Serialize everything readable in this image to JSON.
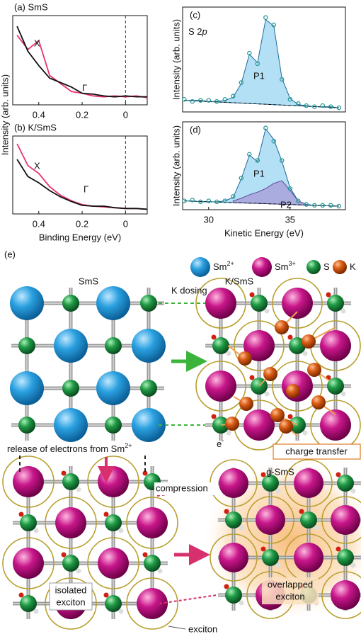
{
  "chart_data": [
    {
      "type": "line",
      "title": "(a) SmS",
      "ylabel": "Intensity (arb. units)",
      "x": [
        0.5,
        0.45,
        0.4,
        0.35,
        0.3,
        0.25,
        0.2,
        0.15,
        0.1,
        0.05,
        0,
        -0.05,
        -0.1
      ],
      "xlim": [
        0.52,
        -0.1
      ],
      "xticks": [
        0.4,
        0.2,
        0
      ],
      "ylim": [
        0,
        1
      ],
      "vline": 0,
      "annotations": [
        "X",
        "Γ"
      ],
      "series": [
        {
          "color": "#e8326e",
          "values": [
            0.78,
            0.62,
            0.72,
            0.33,
            0.24,
            0.15,
            0.13,
            0.1,
            0.09,
            0.1,
            0.09,
            0.1,
            0.08
          ]
        },
        {
          "color": "#111111",
          "values": [
            0.88,
            0.6,
            0.44,
            0.3,
            0.25,
            0.2,
            0.13,
            0.12,
            0.1,
            0.09,
            0.1,
            0.09,
            0.09
          ]
        }
      ]
    },
    {
      "type": "line",
      "title": "(b) K/SmS",
      "xlabel": "Binding Energy  (eV)",
      "x": [
        0.5,
        0.45,
        0.4,
        0.35,
        0.3,
        0.25,
        0.2,
        0.15,
        0.1,
        0.05,
        0,
        -0.05,
        -0.1
      ],
      "xlim": [
        0.52,
        -0.1
      ],
      "xticks": [
        0.4,
        0.2,
        0
      ],
      "ylim": [
        0,
        1
      ],
      "vline": 0,
      "annotations": [
        "X",
        "Γ"
      ],
      "series": [
        {
          "color": "#e8326e",
          "values": [
            0.9,
            0.62,
            0.52,
            0.35,
            0.24,
            0.17,
            0.12,
            0.1,
            0.09,
            0.08,
            0.07,
            0.07,
            0.06
          ]
        },
        {
          "color": "#111111",
          "values": [
            0.7,
            0.48,
            0.4,
            0.3,
            0.22,
            0.16,
            0.11,
            0.1,
            0.1,
            0.08,
            0.07,
            0.07,
            0.06
          ]
        }
      ]
    },
    {
      "type": "line",
      "title": "(c)",
      "ylabel": "Intensity (arb. units)",
      "xlim": [
        28.4,
        38.4
      ],
      "ylim": [
        0,
        1
      ],
      "annotations": [
        {
          "text": "S 2",
          "italic": "p"
        },
        "P1"
      ],
      "series": [
        {
          "style": "area",
          "color": "#9bd6f2",
          "stroke": "#1d6a9a",
          "x": [
            28.5,
            29,
            29.5,
            30,
            30.5,
            31,
            31.5,
            32,
            32.5,
            33,
            33.5,
            34,
            34.5,
            35,
            35.5,
            36,
            36.5,
            37,
            37.5,
            38
          ],
          "values": [
            0.11,
            0.11,
            0.11,
            0.1,
            0.1,
            0.11,
            0.14,
            0.27,
            0.55,
            0.47,
            0.88,
            0.82,
            0.32,
            0.13,
            0.07,
            0.06,
            0.05,
            0.05,
            0.05,
            0.04
          ]
        },
        {
          "style": "dashed",
          "color": "#111111",
          "x": [
            28.5,
            38
          ],
          "values": [
            0.11,
            0.04
          ]
        },
        {
          "style": "markers",
          "color": "#2a9a9a",
          "x": [
            28.5,
            29,
            29.5,
            30,
            30.5,
            31,
            31.5,
            32,
            32.5,
            33,
            33.5,
            34,
            34.5,
            35,
            35.5,
            36,
            36.5,
            37,
            37.5,
            38
          ],
          "values": [
            0.12,
            0.1,
            0.11,
            0.11,
            0.1,
            0.12,
            0.15,
            0.28,
            0.56,
            0.46,
            0.9,
            0.83,
            0.31,
            0.12,
            0.08,
            0.06,
            0.05,
            0.06,
            0.05,
            0.04
          ]
        }
      ]
    },
    {
      "type": "line",
      "title": "(d)",
      "ylabel": "Intensity (arb. units)",
      "xlabel": "Kinetic Energy  (eV)",
      "xlim": [
        28.4,
        38.4
      ],
      "xticks": [
        30,
        35
      ],
      "ylim": [
        0,
        1
      ],
      "annotations": [
        "P1",
        "P2"
      ],
      "series": [
        {
          "style": "area",
          "color": "#9bd6f2",
          "stroke": "#1d6a9a",
          "x": [
            28.5,
            29,
            29.5,
            30,
            30.5,
            31,
            31.5,
            32,
            32.5,
            33,
            33.5,
            34,
            34.5,
            35,
            35.5,
            36,
            36.5,
            37,
            37.5,
            38
          ],
          "values": [
            0.1,
            0.1,
            0.09,
            0.09,
            0.09,
            0.1,
            0.14,
            0.35,
            0.62,
            0.55,
            0.92,
            0.8,
            0.55,
            0.25,
            0.1,
            0.06,
            0.05,
            0.05,
            0.04,
            0.04
          ]
        },
        {
          "style": "area",
          "color": "#a79ad6",
          "stroke": "#5a4a9a",
          "x": [
            31.5,
            32,
            32.5,
            33,
            33.5,
            34,
            34.5,
            35,
            35.5,
            36
          ],
          "values": [
            0.1,
            0.13,
            0.17,
            0.2,
            0.24,
            0.3,
            0.33,
            0.22,
            0.1,
            0.06
          ]
        },
        {
          "style": "dashed",
          "color": "#111111",
          "x": [
            28.5,
            38
          ],
          "values": [
            0.1,
            0.04
          ]
        },
        {
          "style": "markers",
          "color": "#2a9a9a",
          "x": [
            28.5,
            29,
            29.5,
            30,
            30.5,
            31,
            31.5,
            32,
            32.5,
            33,
            33.5,
            34,
            34.5,
            35,
            35.5,
            36,
            36.5,
            37,
            37.5,
            38
          ],
          "values": [
            0.1,
            0.11,
            0.09,
            0.1,
            0.09,
            0.1,
            0.15,
            0.36,
            0.63,
            0.56,
            0.93,
            0.78,
            0.56,
            0.24,
            0.1,
            0.06,
            0.05,
            0.05,
            0.05,
            0.04
          ]
        }
      ]
    }
  ],
  "diagram": {
    "label": "(e)",
    "legend": [
      {
        "base": "Sm",
        "sup": "2+"
      },
      {
        "base": "Sm",
        "sup": "3+"
      },
      {
        "base": "S"
      },
      {
        "base": "K"
      }
    ],
    "sms": "SmS",
    "ksms": "K/SmS",
    "k_dosing": "K dosing",
    "release": {
      "base": "release of electrons from Sm",
      "sup": "2+"
    },
    "electron": {
      "base": "e",
      "sup": "-"
    },
    "charge_transfer": "charge transfer",
    "compression": "compression",
    "gsms": "g-SmS",
    "isolated": [
      "isolated",
      "exciton"
    ],
    "overlapped": [
      "overlapped",
      "exciton"
    ],
    "exciton": "exciton"
  }
}
